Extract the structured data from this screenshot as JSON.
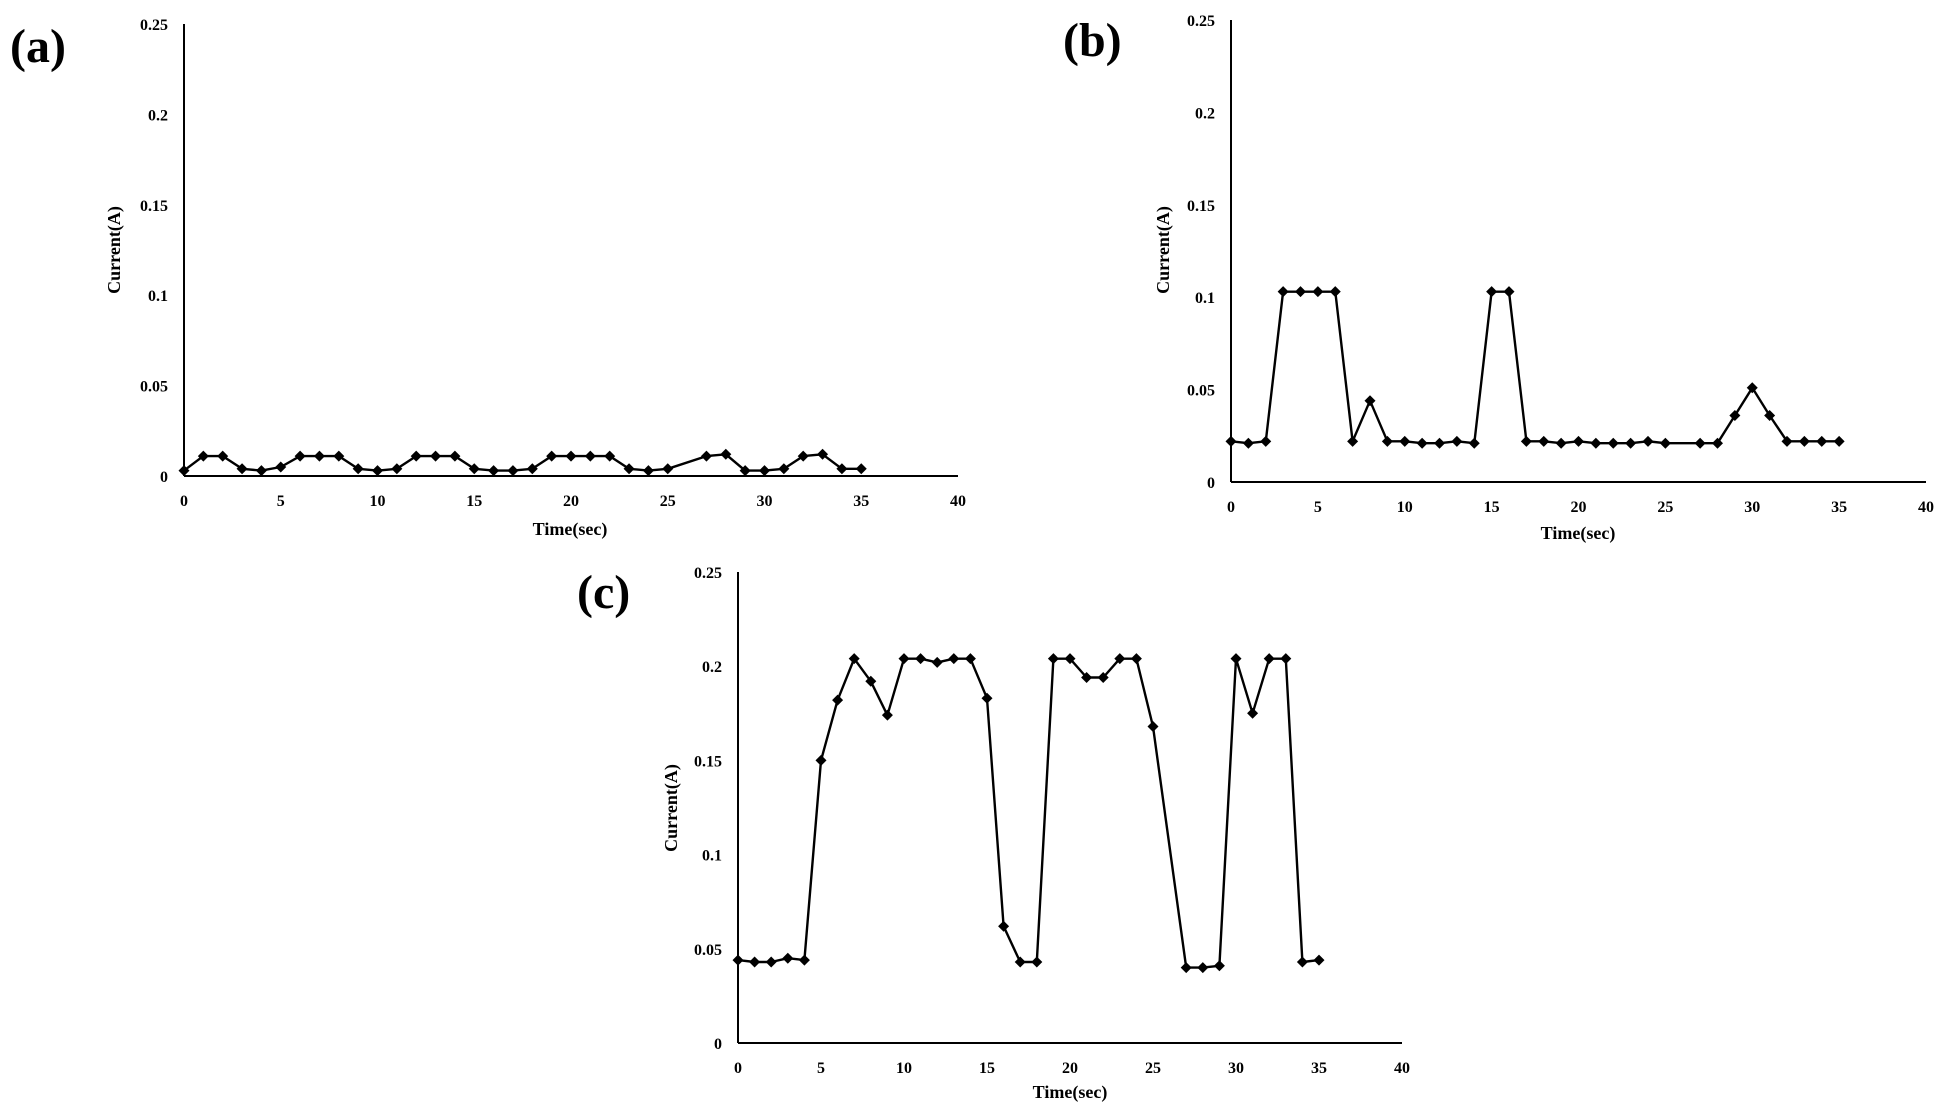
{
  "chart_data": [
    {
      "type": "line",
      "panel_label": "(a)",
      "xlabel": "Time(sec)",
      "ylabel": "Current(A)",
      "xlim": [
        0,
        40
      ],
      "ylim": [
        0,
        0.25
      ],
      "xticks": [
        0,
        5,
        10,
        15,
        20,
        25,
        30,
        35,
        40
      ],
      "yticks": [
        0,
        0.05,
        0.1,
        0.15,
        0.2,
        0.25
      ],
      "ytick_labels": [
        "0",
        "0.05",
        "0.1",
        "0.15",
        "0.2",
        "0.25"
      ],
      "marker": "diamond",
      "grid": false,
      "series": [
        {
          "x": [
            0,
            1,
            2,
            3,
            4,
            5,
            6,
            7,
            8,
            9,
            10,
            11,
            12,
            13,
            14,
            15,
            16,
            17,
            18,
            19,
            20,
            21,
            22,
            23,
            24,
            25,
            27,
            28,
            29,
            30,
            31,
            32,
            33,
            34,
            35
          ],
          "values": [
            0.003,
            0.011,
            0.011,
            0.004,
            0.003,
            0.005,
            0.011,
            0.011,
            0.011,
            0.004,
            0.003,
            0.004,
            0.011,
            0.011,
            0.011,
            0.004,
            0.003,
            0.003,
            0.004,
            0.011,
            0.011,
            0.011,
            0.011,
            0.004,
            0.003,
            0.004,
            0.011,
            0.012,
            0.003,
            0.003,
            0.004,
            0.011,
            0.012,
            0.004,
            0.004
          ]
        }
      ]
    },
    {
      "type": "line",
      "panel_label": "(b)",
      "xlabel": "Time(sec)",
      "ylabel": "Current(A)",
      "xlim": [
        0,
        40
      ],
      "ylim": [
        0,
        0.25
      ],
      "xticks": [
        0,
        5,
        10,
        15,
        20,
        25,
        30,
        35,
        40
      ],
      "yticks": [
        0,
        0.05,
        0.1,
        0.15,
        0.2,
        0.25
      ],
      "ytick_labels": [
        "0",
        "0.05",
        "0.1",
        "0.15",
        "0.2",
        "0.25"
      ],
      "marker": "diamond",
      "grid": false,
      "series": [
        {
          "x": [
            0,
            1,
            2,
            3,
            4,
            5,
            6,
            7,
            8,
            9,
            10,
            11,
            12,
            13,
            14,
            15,
            16,
            17,
            18,
            19,
            20,
            21,
            22,
            23,
            24,
            25,
            27,
            28,
            29,
            30,
            31,
            32,
            33,
            34,
            35
          ],
          "values": [
            0.022,
            0.021,
            0.022,
            0.103,
            0.103,
            0.103,
            0.103,
            0.022,
            0.044,
            0.022,
            0.022,
            0.021,
            0.021,
            0.022,
            0.021,
            0.103,
            0.103,
            0.022,
            0.022,
            0.021,
            0.022,
            0.021,
            0.021,
            0.021,
            0.022,
            0.021,
            0.021,
            0.021,
            0.036,
            0.051,
            0.036,
            0.022,
            0.022,
            0.022,
            0.022
          ]
        }
      ]
    },
    {
      "type": "line",
      "panel_label": "(c)",
      "xlabel": "Time(sec)",
      "ylabel": "Current(A)",
      "xlim": [
        0,
        40
      ],
      "ylim": [
        0,
        0.25
      ],
      "xticks": [
        0,
        5,
        10,
        15,
        20,
        25,
        30,
        35,
        40
      ],
      "yticks": [
        0,
        0.05,
        0.1,
        0.15,
        0.2,
        0.25
      ],
      "ytick_labels": [
        "0",
        "0.05",
        "0.1",
        "0.15",
        "0.2",
        "0.25"
      ],
      "marker": "diamond",
      "grid": false,
      "series": [
        {
          "x": [
            0,
            1,
            2,
            3,
            4,
            5,
            6,
            7,
            8,
            9,
            10,
            11,
            12,
            13,
            14,
            15,
            16,
            17,
            18,
            19,
            20,
            21,
            22,
            23,
            24,
            25,
            27,
            28,
            29,
            30,
            31,
            32,
            33,
            34,
            35
          ],
          "values": [
            0.044,
            0.043,
            0.043,
            0.045,
            0.044,
            0.15,
            0.182,
            0.204,
            0.192,
            0.174,
            0.204,
            0.204,
            0.202,
            0.204,
            0.204,
            0.183,
            0.062,
            0.043,
            0.043,
            0.204,
            0.204,
            0.194,
            0.194,
            0.204,
            0.204,
            0.168,
            0.04,
            0.04,
            0.041,
            0.204,
            0.175,
            0.204,
            0.204,
            0.043,
            0.044
          ]
        }
      ]
    }
  ]
}
